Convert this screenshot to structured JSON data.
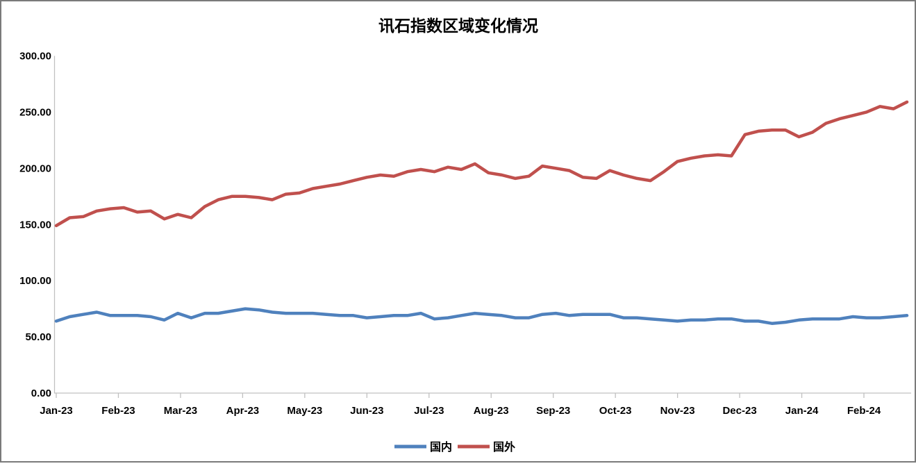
{
  "chart_data": {
    "type": "line",
    "title": "讯石指数区域变化情况",
    "xlabel": "",
    "ylabel": "",
    "grid": false,
    "legend_position": "bottom",
    "y_axis": {
      "min": 0,
      "max": 300,
      "step": 50,
      "tick_labels": [
        "0.00",
        "50.00",
        "100.00",
        "150.00",
        "200.00",
        "250.00",
        "300.00"
      ]
    },
    "x_axis": {
      "tick_labels": [
        "Jan-23",
        "Feb-23",
        "Mar-23",
        "Apr-23",
        "May-23",
        "Jun-23",
        "Jul-23",
        "Aug-23",
        "Sep-23",
        "Oct-23",
        "Nov-23",
        "Dec-23",
        "Jan-24",
        "Feb-24"
      ]
    },
    "series": [
      {
        "name": "国内",
        "color": "#4F81BD",
        "values": [
          64,
          68,
          70,
          72,
          69,
          69,
          69,
          68,
          65,
          71,
          67,
          71,
          71,
          73,
          75,
          74,
          72,
          71,
          71,
          71,
          70,
          69,
          69,
          67,
          68,
          69,
          69,
          71,
          66,
          67,
          69,
          71,
          70,
          69,
          67,
          67,
          70,
          71,
          69,
          70,
          70,
          70,
          67,
          67,
          66,
          65,
          64,
          65,
          65,
          66,
          66,
          64,
          64,
          62,
          63,
          65,
          66,
          66,
          66,
          68,
          67,
          67,
          68,
          69
        ]
      },
      {
        "name": "国外",
        "color": "#C0504D",
        "values": [
          149,
          156,
          157,
          162,
          164,
          165,
          161,
          162,
          155,
          159,
          156,
          166,
          172,
          175,
          175,
          174,
          172,
          177,
          178,
          182,
          184,
          186,
          189,
          192,
          194,
          193,
          197,
          199,
          197,
          201,
          199,
          204,
          196,
          194,
          191,
          193,
          202,
          200,
          198,
          192,
          191,
          198,
          194,
          191,
          189,
          197,
          206,
          209,
          211,
          212,
          211,
          230,
          233,
          234,
          234,
          228,
          232,
          240,
          244,
          247,
          250,
          255,
          253,
          259
        ]
      }
    ],
    "axis_color": "#C0C0C0",
    "text_color": "#000000",
    "background_color": "#FFFFFF",
    "border_color": "#7A7A7A"
  }
}
